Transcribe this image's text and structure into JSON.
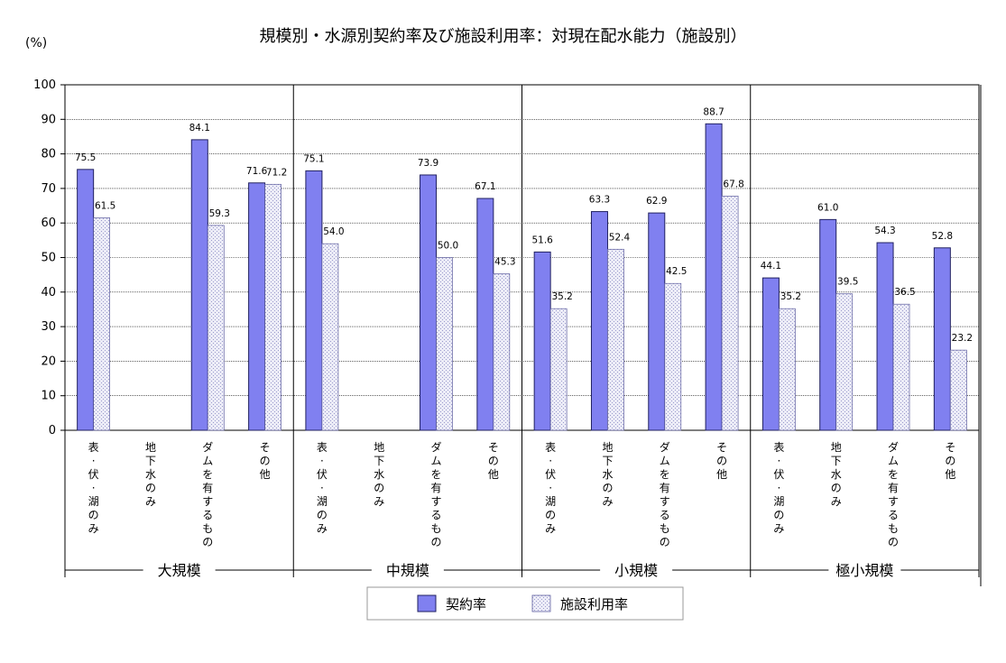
{
  "chart_data": {
    "type": "bar",
    "title": "規模別・水源別契約率及び施設利用率：対現在配水能力（施設別）",
    "ylabel": "(%)",
    "ylim": [
      0,
      100
    ],
    "yticks": [
      0,
      10,
      20,
      30,
      40,
      50,
      60,
      70,
      80,
      90,
      100
    ],
    "grid": true,
    "legend_position": "bottom-center",
    "groups": [
      {
        "name": "大規模",
        "categories": [
          "表・伏・湖のみ",
          "地下水のみ",
          "ダムを有するもの",
          "その他"
        ]
      },
      {
        "name": "中規模",
        "categories": [
          "表・伏・湖のみ",
          "地下水のみ",
          "ダムを有するもの",
          "その他"
        ]
      },
      {
        "name": "小規模",
        "categories": [
          "表・伏・湖のみ",
          "地下水のみ",
          "ダムを有するもの",
          "その他"
        ]
      },
      {
        "name": "極小規模",
        "categories": [
          "表・伏・湖のみ",
          "地下水のみ",
          "ダムを有するもの",
          "その他"
        ]
      }
    ],
    "series": [
      {
        "name": "契約率",
        "color": "#8080f0",
        "values": [
          75.5,
          null,
          84.1,
          71.6,
          75.1,
          null,
          73.9,
          67.1,
          51.6,
          63.3,
          62.9,
          88.7,
          44.1,
          61.0,
          54.3,
          52.8
        ],
        "labels": [
          "75.5",
          "",
          "84.1",
          "71.6",
          "75.1",
          "",
          "73.9",
          "67.1",
          "51.6",
          "63.3",
          "62.9",
          "88.7",
          "44.1",
          "61.0",
          "54.3",
          "52.8"
        ]
      },
      {
        "name": "施設利用率",
        "color": "#e6e6f5",
        "values": [
          61.5,
          null,
          59.3,
          71.2,
          54.0,
          null,
          50.0,
          45.3,
          35.2,
          52.4,
          42.5,
          67.8,
          35.2,
          39.5,
          36.5,
          23.2
        ],
        "labels": [
          "61.5",
          "",
          "59.3",
          "71.2",
          "54.0",
          "",
          "50.0",
          "45.3",
          "35.2",
          "52.4",
          "42.5",
          "67.8",
          "35.2",
          "39.5",
          "36.5",
          "23.2"
        ]
      }
    ]
  }
}
